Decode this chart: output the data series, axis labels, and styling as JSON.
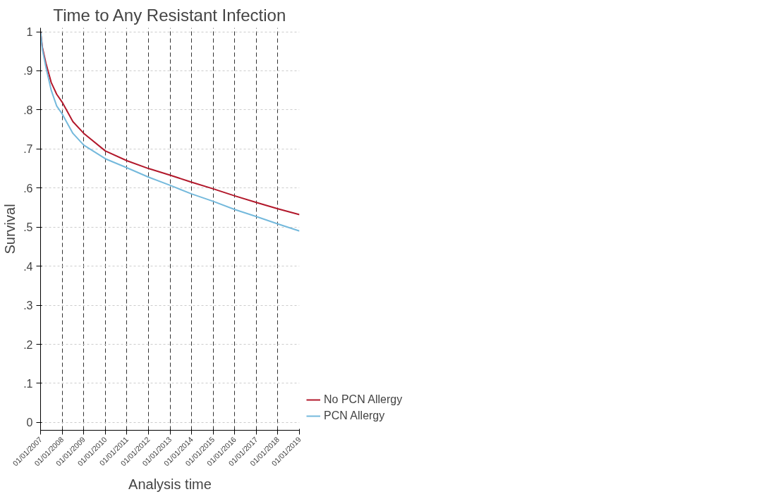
{
  "chart_data": {
    "type": "line",
    "title": "Time to Any Resistant Infection",
    "xlabel": "Analysis time",
    "ylabel": "Survival",
    "x": [
      "2007-01-01",
      "2007-02-01",
      "2007-04-01",
      "2007-07-01",
      "2007-10-01",
      "2008-01-01",
      "2008-07-01",
      "2009-01-01",
      "2010-01-01",
      "2011-01-01",
      "2012-01-01",
      "2013-01-01",
      "2014-01-01",
      "2015-01-01",
      "2016-01-01",
      "2017-01-01",
      "2018-01-01",
      "2019-01-01"
    ],
    "series": [
      {
        "name": "No PCN Allergy",
        "color": "#b2182b",
        "values": [
          1.0,
          0.96,
          0.92,
          0.87,
          0.84,
          0.82,
          0.77,
          0.74,
          0.695,
          0.67,
          0.65,
          0.633,
          0.615,
          0.598,
          0.58,
          0.563,
          0.547,
          0.532
        ]
      },
      {
        "name": "PCN Allergy",
        "color": "#74b9dc",
        "values": [
          1.0,
          0.955,
          0.91,
          0.85,
          0.81,
          0.79,
          0.74,
          0.71,
          0.675,
          0.652,
          0.628,
          0.607,
          0.585,
          0.566,
          0.545,
          0.527,
          0.508,
          0.49
        ]
      }
    ],
    "xlim": [
      "2007-01-01",
      "2019-01-01"
    ],
    "xticks": [
      {
        "value": "2007-01-01",
        "label": "01/01/2007"
      },
      {
        "value": "2008-01-01",
        "label": "01/01/2008"
      },
      {
        "value": "2009-01-01",
        "label": "01/01/2009"
      },
      {
        "value": "2010-01-01",
        "label": "01/01/2010"
      },
      {
        "value": "2011-01-01",
        "label": "01/01/2011"
      },
      {
        "value": "2012-01-01",
        "label": "01/01/2012"
      },
      {
        "value": "2013-01-01",
        "label": "01/01/2013"
      },
      {
        "value": "2014-01-01",
        "label": "01/01/2014"
      },
      {
        "value": "2015-01-01",
        "label": "01/01/2015"
      },
      {
        "value": "2016-01-01",
        "label": "01/01/2016"
      },
      {
        "value": "2017-01-01",
        "label": "01/01/2017"
      },
      {
        "value": "2018-01-01",
        "label": "01/01/2018"
      },
      {
        "value": "2019-01-01",
        "label": "01/01/2019"
      }
    ],
    "ylim": [
      -0.02,
      1.01
    ],
    "yticks": [
      0,
      {
        "value": 0.1,
        "label": ".1"
      },
      {
        "value": 0.2,
        "label": ".2"
      },
      {
        "value": 0.3,
        "label": ".3"
      },
      {
        "value": 0.4,
        "label": ".4"
      },
      {
        "value": 0.5,
        "label": ".5"
      },
      {
        "value": 0.6,
        "label": ".6"
      },
      {
        "value": 0.7,
        "label": ".7"
      },
      {
        "value": 0.8,
        "label": ".8"
      },
      {
        "value": 0.9,
        "label": ".9"
      },
      1
    ],
    "grid": true,
    "legend": "right",
    "marker": "none",
    "line_style": "solid"
  }
}
